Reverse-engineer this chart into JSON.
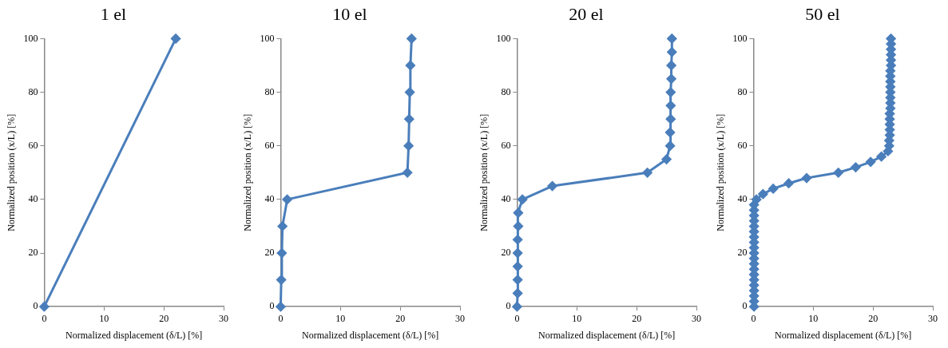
{
  "chart_data": [
    {
      "type": "line",
      "title": "1 el",
      "xlabel": "Normalized displacement (δ/L) [%]",
      "ylabel": "Normalized position (x/L) [%]",
      "x": [
        0,
        22
      ],
      "values": [
        0,
        100
      ],
      "color": "#4a7ebb",
      "marker": "diamond",
      "xlim": [
        0,
        30
      ],
      "xticks": [
        0,
        10,
        20,
        30
      ],
      "ylim": [
        0,
        100
      ],
      "yticks": [
        0,
        20,
        40,
        60,
        80,
        100
      ]
    },
    {
      "type": "line",
      "title": "10 el",
      "xlabel": "Normalized displacement (δ/L) [%]",
      "ylabel": "Normalized position (x/L) [%]",
      "x": [
        0,
        0.1,
        0.2,
        0.3,
        1.1,
        21.2,
        21.4,
        21.5,
        21.6,
        21.7,
        21.9
      ],
      "values": [
        0,
        10,
        20,
        30,
        40,
        50,
        60,
        70,
        80,
        90,
        100
      ],
      "color": "#4a7ebb",
      "marker": "diamond",
      "xlim": [
        0,
        30
      ],
      "xticks": [
        0,
        10,
        20,
        30
      ],
      "ylim": [
        0,
        100
      ],
      "yticks": [
        0,
        20,
        40,
        60,
        80,
        100
      ]
    },
    {
      "type": "line",
      "title": "20 el",
      "xlabel": "Normalized displacement (δ/L) [%]",
      "ylabel": "Normalized position (x/L) [%]",
      "x": [
        0,
        0.1,
        0.1,
        0.1,
        0.1,
        0.1,
        0.2,
        0.2,
        0.9,
        5.9,
        21.8,
        25.0,
        25.6,
        25.6,
        25.7,
        25.7,
        25.7,
        25.8,
        25.8,
        25.9,
        25.9
      ],
      "values": [
        0,
        5,
        10,
        15,
        20,
        25,
        30,
        35,
        40,
        45,
        50,
        55,
        60,
        65,
        70,
        75,
        80,
        85,
        90,
        95,
        100
      ],
      "color": "#4a7ebb",
      "marker": "diamond",
      "xlim": [
        0,
        30
      ],
      "xticks": [
        0,
        10,
        20,
        30
      ],
      "ylim": [
        0,
        100
      ],
      "yticks": [
        0,
        20,
        40,
        60,
        80,
        100
      ]
    },
    {
      "type": "line",
      "title": "50 el",
      "xlabel": "Normalized displacement (δ/L) [%]",
      "ylabel": "Normalized position (x/L) [%]",
      "x": [
        0.1,
        0.1,
        0.1,
        0.1,
        0.1,
        0.1,
        0.1,
        0.1,
        0.1,
        0.1,
        0.1,
        0.1,
        0.1,
        0.1,
        0.1,
        0.1,
        0.1,
        0.1,
        0.1,
        0.1,
        0.5,
        1.6,
        3.3,
        5.9,
        8.9,
        14.2,
        17.1,
        19.6,
        21.4,
        22.5,
        22.7,
        22.7,
        22.8,
        22.8,
        22.8,
        22.8,
        22.8,
        22.9,
        22.9,
        22.9,
        22.9,
        22.9,
        22.9,
        22.9,
        22.9,
        23.0,
        23.0,
        23.0,
        23.0,
        23.0,
        23.0
      ],
      "values": [
        0,
        2,
        4,
        6,
        8,
        10,
        12,
        14,
        16,
        18,
        20,
        22,
        24,
        26,
        28,
        30,
        32,
        34,
        36,
        38,
        40,
        42,
        44,
        46,
        48,
        50,
        52,
        54,
        56,
        58,
        60,
        62,
        64,
        66,
        68,
        70,
        72,
        74,
        76,
        78,
        80,
        82,
        84,
        86,
        88,
        90,
        92,
        94,
        96,
        98,
        100
      ],
      "color": "#4a7ebb",
      "marker": "diamond",
      "xlim": [
        0,
        30
      ],
      "xticks": [
        0,
        10,
        20,
        30
      ],
      "ylim": [
        0,
        100
      ],
      "yticks": [
        0,
        20,
        40,
        60,
        80,
        100
      ]
    }
  ]
}
